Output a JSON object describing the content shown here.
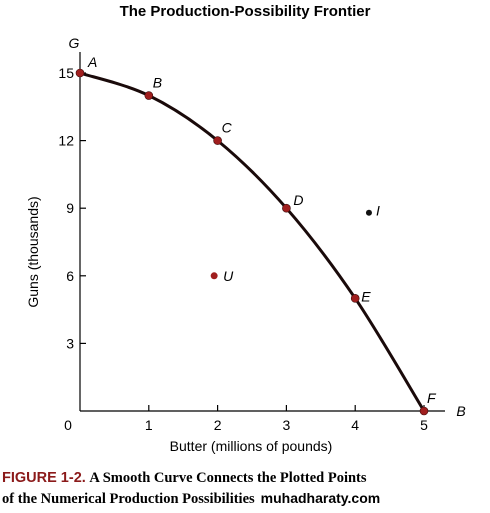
{
  "chart_data": {
    "type": "line",
    "title": "The Production-Possibility Frontier",
    "xlabel": "Butter (millions of pounds)",
    "ylabel": "Guns (thousands)",
    "x_axis_letter": "B",
    "y_axis_letter": "G",
    "xlim": [
      0,
      5
    ],
    "ylim": [
      0,
      15
    ],
    "x_ticks": [
      "0",
      "1",
      "2",
      "3",
      "4",
      "5"
    ],
    "y_ticks": [
      "3",
      "6",
      "9",
      "12",
      "15"
    ],
    "grid": false,
    "frontier": [
      {
        "label": "A",
        "x": 0,
        "y": 15
      },
      {
        "label": "B",
        "x": 1,
        "y": 14
      },
      {
        "label": "C",
        "x": 2,
        "y": 12
      },
      {
        "label": "D",
        "x": 3,
        "y": 9
      },
      {
        "label": "E",
        "x": 4,
        "y": 5
      },
      {
        "label": "F",
        "x": 5,
        "y": 0
      }
    ],
    "other_points": [
      {
        "label": "I",
        "x": 4.2,
        "y": 8.8
      },
      {
        "label": "U",
        "x": 1.95,
        "y": 6
      }
    ],
    "colors": {
      "curve": "#1a0a0a",
      "frontier_point": "#a01e1e",
      "other_point": "#111111"
    }
  },
  "caption": {
    "figure_label": "FIGURE 1-2.",
    "line1": "A Smooth Curve Connects the Plotted Points",
    "line2": "of the Numerical Production Possibilities",
    "watermark": "muhadharaty.com"
  }
}
